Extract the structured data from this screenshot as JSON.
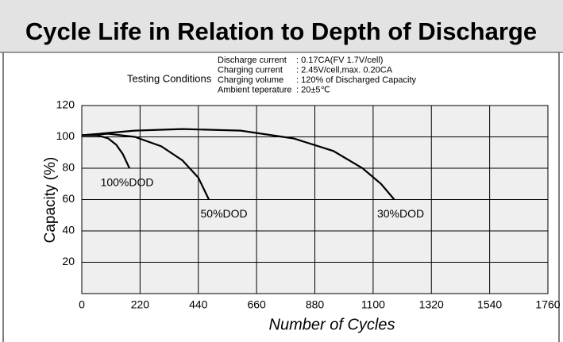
{
  "chart_data": {
    "type": "line",
    "title": "Cycle Life in Relation to Depth of Discharge",
    "conditions_title": "Testing Conditions",
    "conditions": [
      {
        "label": "Discharge current",
        "value": ": 0.17CA(FV 1.7V/cell)"
      },
      {
        "label": "Charging current",
        "value": ": 2.45V/cell,max. 0.20CA"
      },
      {
        "label": "Charging volume",
        "value": ": 120% of Discharged Capacity"
      },
      {
        "label": "Ambient teperature",
        "value": ": 20±5℃"
      }
    ],
    "x_label": "Number of Cycles",
    "y_label": "Capacity (%)",
    "xlim": [
      0,
      1760
    ],
    "xticks": [
      0,
      220,
      440,
      660,
      880,
      1100,
      1320,
      1540,
      1760
    ],
    "ylim": [
      0,
      120
    ],
    "yticks": [
      20,
      40,
      60,
      80,
      100,
      120
    ],
    "grid": true,
    "color": "#000000",
    "series": [
      {
        "name": "100%DOD",
        "x": [
          0,
          60,
          100,
          130,
          155,
          180
        ],
        "values": [
          101,
          101,
          99,
          95,
          89,
          80
        ]
      },
      {
        "name": "50%DOD",
        "x": [
          0,
          100,
          200,
          300,
          380,
          440,
          480
        ],
        "values": [
          101,
          102,
          100,
          94,
          85,
          74,
          60
        ]
      },
      {
        "name": "30%DOD",
        "x": [
          0,
          200,
          380,
          600,
          800,
          950,
          1060,
          1130,
          1180
        ],
        "values": [
          101,
          104,
          105,
          104,
          99,
          91,
          80,
          70,
          60
        ]
      }
    ]
  }
}
